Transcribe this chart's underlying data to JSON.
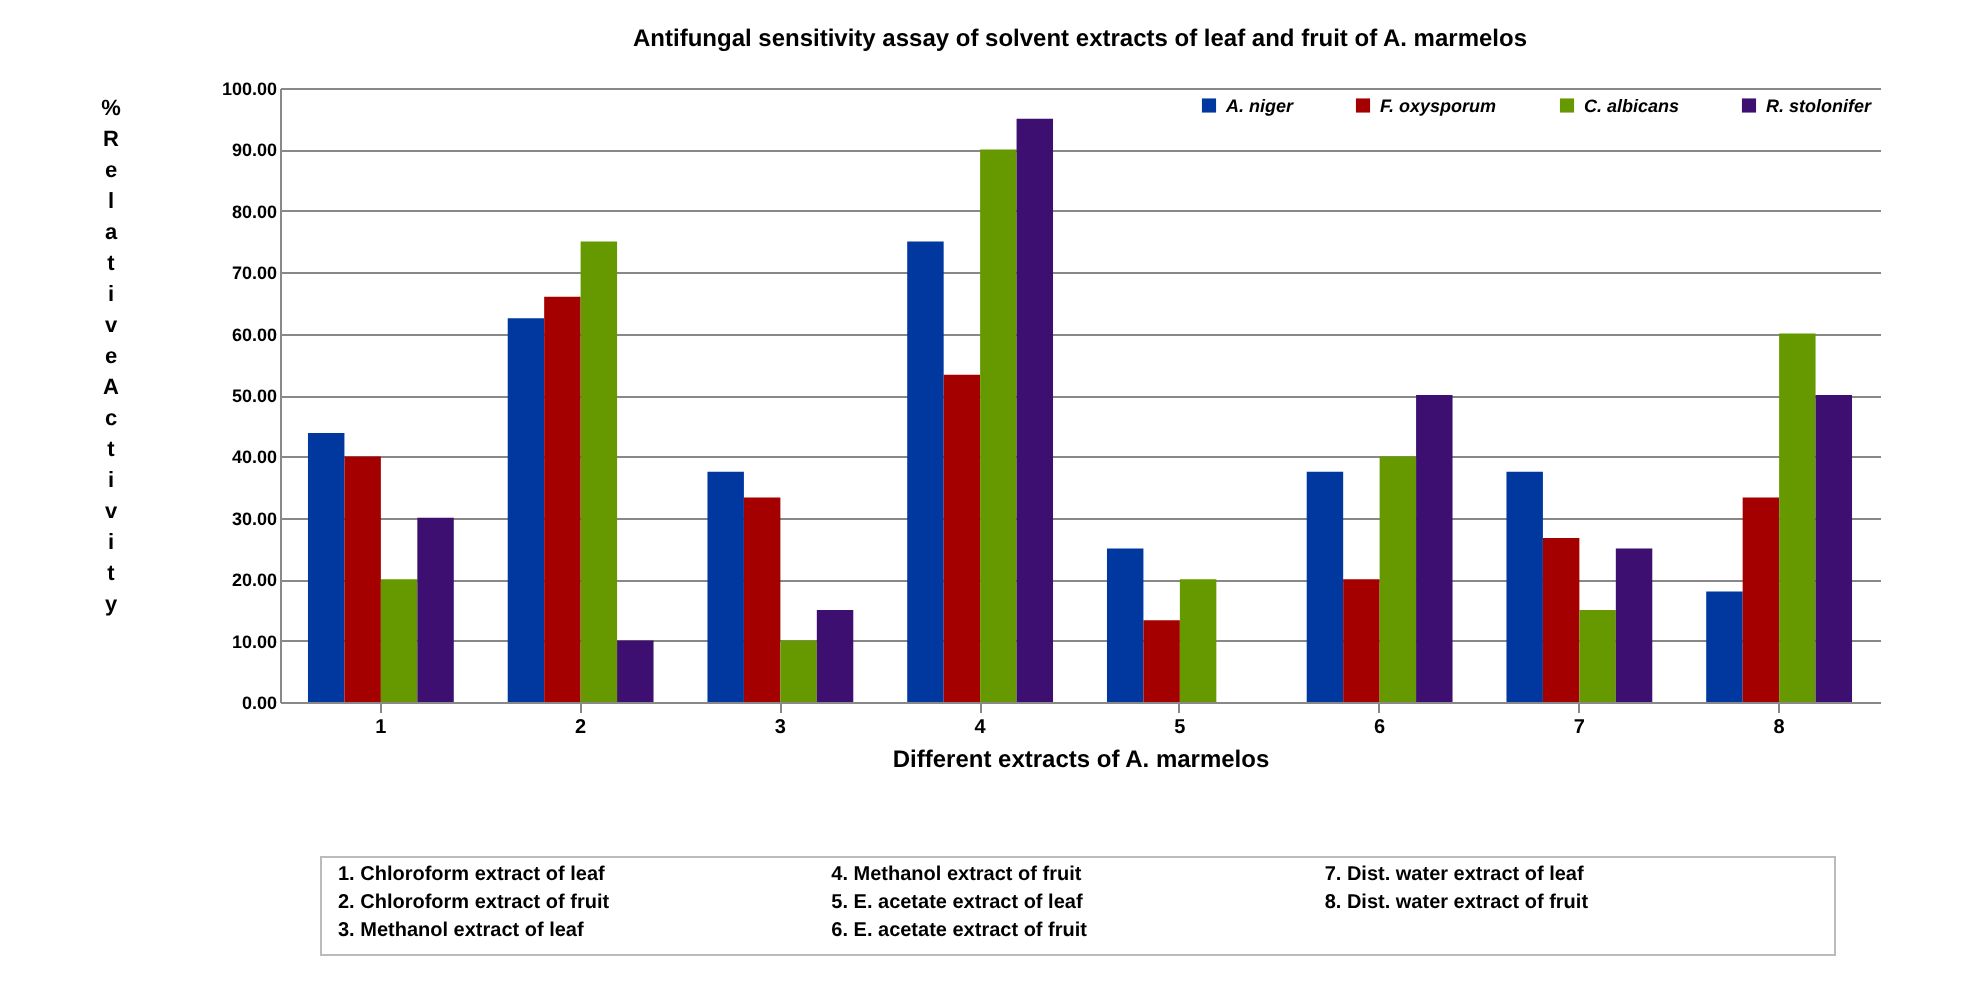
{
  "chart_data": {
    "type": "bar",
    "title": "Antifungal sensitivity assay of solvent extracts of leaf and fruit of A. marmelos",
    "xlabel": "Different extracts of A. marmelos",
    "ylabel": "% Relative Activity",
    "categories": [
      "1",
      "2",
      "3",
      "4",
      "5",
      "6",
      "7",
      "8"
    ],
    "series": [
      {
        "name": "A. niger",
        "color": "#0038a0",
        "values": [
          43.8,
          62.5,
          37.5,
          75,
          25,
          37.5,
          37.5,
          18
        ]
      },
      {
        "name": "F. oxysporum",
        "color": "#a50000",
        "values": [
          40,
          66,
          33.3,
          53.3,
          13.3,
          20,
          26.7,
          33.3
        ]
      },
      {
        "name": "C. albicans",
        "color": "#669900",
        "values": [
          20,
          75,
          10,
          90,
          20,
          40,
          15,
          60
        ]
      },
      {
        "name": "R. stolonifer",
        "color": "#3d0f70",
        "values": [
          30,
          10,
          15,
          95,
          0,
          50,
          25,
          50
        ]
      }
    ],
    "ylim": [
      0,
      100
    ],
    "yticks": [
      {
        "value": 0,
        "label": "0.00"
      },
      {
        "value": 10,
        "label": "10.00"
      },
      {
        "value": 20,
        "label": "20.00"
      },
      {
        "value": 30,
        "label": "30.00"
      },
      {
        "value": 40,
        "label": "40.00"
      },
      {
        "value": 50,
        "label": "50.00"
      },
      {
        "value": 60,
        "label": "60.00"
      },
      {
        "value": 70,
        "label": "70.00"
      },
      {
        "value": 80,
        "label": "80.00"
      },
      {
        "value": 90,
        "label": "90.00"
      },
      {
        "value": 100,
        "label": "100.00"
      }
    ],
    "grid": "y",
    "legend": "top right",
    "annotations": [
      "1. Chloroform extract of leaf",
      "2. Chloroform extract of fruit",
      "3. Methanol extract of leaf",
      "4. Methanol extract of fruit",
      "5. E. acetate extract of leaf",
      "6. E. acetate extract of fruit",
      "7. Dist. water extract of leaf",
      "8. Dist. water extract of fruit"
    ]
  }
}
